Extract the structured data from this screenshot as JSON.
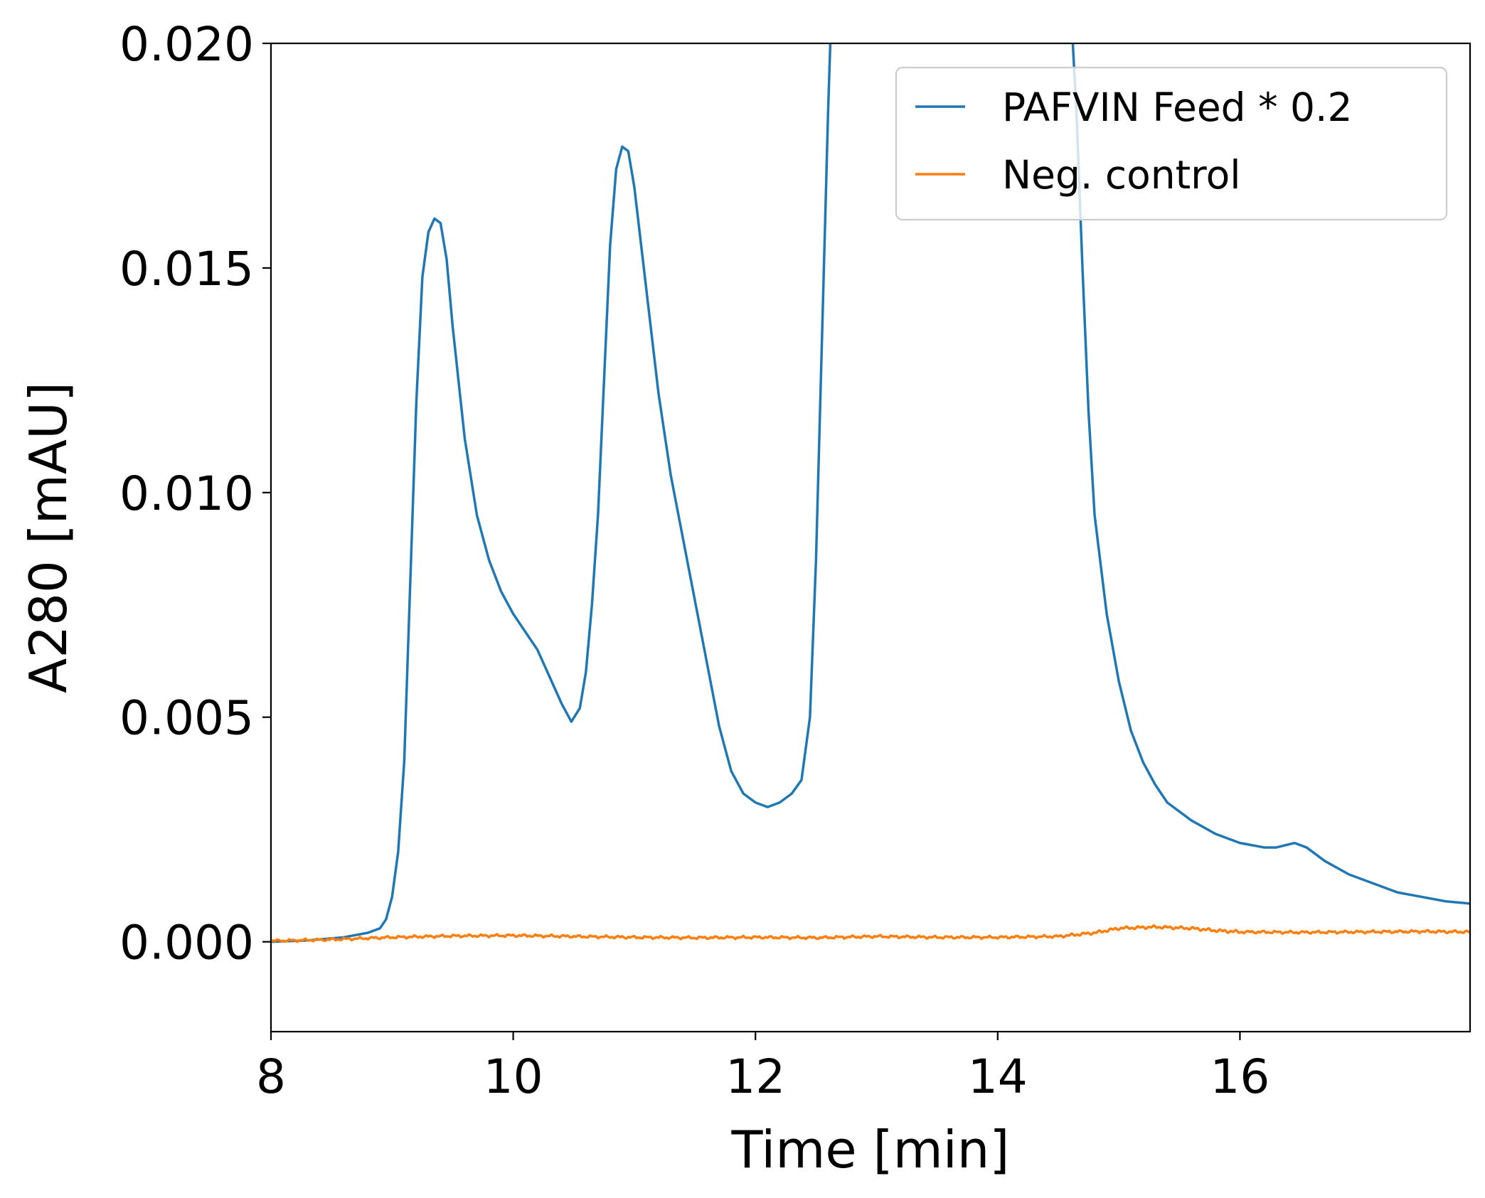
{
  "chart_data": {
    "type": "line",
    "title": "",
    "xlabel": "Time [min]",
    "ylabel": "A280 [mAU]",
    "xlim": [
      8,
      17.9
    ],
    "ylim": [
      -0.002,
      0.02
    ],
    "xticks": [
      8,
      10,
      12,
      14,
      16
    ],
    "xtick_labels": [
      "8",
      "10",
      "12",
      "14",
      "16"
    ],
    "yticks": [
      0.0,
      0.005,
      0.01,
      0.015,
      0.02
    ],
    "ytick_labels": [
      "0.000",
      "0.005",
      "0.010",
      "0.015",
      "0.020"
    ],
    "grid": false,
    "legend_position": "top-right",
    "series": [
      {
        "name": "PAFVIN Feed * 0.2",
        "color": "#1f77b4",
        "points": [
          [
            8.0,
            0.0
          ],
          [
            8.3,
            3e-05
          ],
          [
            8.6,
            0.0001
          ],
          [
            8.8,
            0.0002
          ],
          [
            8.9,
            0.0003
          ],
          [
            8.95,
            0.0005
          ],
          [
            9.0,
            0.001
          ],
          [
            9.05,
            0.002
          ],
          [
            9.1,
            0.004
          ],
          [
            9.15,
            0.008
          ],
          [
            9.2,
            0.012
          ],
          [
            9.25,
            0.0148
          ],
          [
            9.3,
            0.0158
          ],
          [
            9.35,
            0.0161
          ],
          [
            9.4,
            0.016
          ],
          [
            9.45,
            0.0152
          ],
          [
            9.5,
            0.0137
          ],
          [
            9.6,
            0.0112
          ],
          [
            9.7,
            0.0095
          ],
          [
            9.8,
            0.0085
          ],
          [
            9.9,
            0.0078
          ],
          [
            10.0,
            0.0073
          ],
          [
            10.1,
            0.0069
          ],
          [
            10.2,
            0.0065
          ],
          [
            10.3,
            0.0059
          ],
          [
            10.4,
            0.0053
          ],
          [
            10.48,
            0.0049
          ],
          [
            10.55,
            0.0052
          ],
          [
            10.6,
            0.006
          ],
          [
            10.65,
            0.0075
          ],
          [
            10.7,
            0.0095
          ],
          [
            10.75,
            0.0125
          ],
          [
            10.8,
            0.0155
          ],
          [
            10.85,
            0.0172
          ],
          [
            10.9,
            0.0177
          ],
          [
            10.95,
            0.0176
          ],
          [
            11.0,
            0.0168
          ],
          [
            11.1,
            0.0145
          ],
          [
            11.2,
            0.0122
          ],
          [
            11.3,
            0.0104
          ],
          [
            11.4,
            0.009
          ],
          [
            11.5,
            0.0076
          ],
          [
            11.6,
            0.0062
          ],
          [
            11.7,
            0.0048
          ],
          [
            11.8,
            0.0038
          ],
          [
            11.9,
            0.0033
          ],
          [
            12.0,
            0.0031
          ],
          [
            12.1,
            0.003
          ],
          [
            12.2,
            0.0031
          ],
          [
            12.3,
            0.0033
          ],
          [
            12.38,
            0.0036
          ],
          [
            12.45,
            0.005
          ],
          [
            12.5,
            0.0085
          ],
          [
            12.55,
            0.0135
          ],
          [
            12.6,
            0.0185
          ],
          [
            12.63,
            0.021
          ],
          [
            14.6,
            0.021
          ],
          [
            14.65,
            0.0185
          ],
          [
            14.7,
            0.015
          ],
          [
            14.75,
            0.0118
          ],
          [
            14.8,
            0.0095
          ],
          [
            14.9,
            0.0073
          ],
          [
            15.0,
            0.0058
          ],
          [
            15.1,
            0.0047
          ],
          [
            15.2,
            0.004
          ],
          [
            15.3,
            0.0035
          ],
          [
            15.4,
            0.0031
          ],
          [
            15.6,
            0.0027
          ],
          [
            15.8,
            0.0024
          ],
          [
            16.0,
            0.0022
          ],
          [
            16.2,
            0.0021
          ],
          [
            16.3,
            0.0021
          ],
          [
            16.45,
            0.0022
          ],
          [
            16.55,
            0.0021
          ],
          [
            16.7,
            0.0018
          ],
          [
            16.9,
            0.0015
          ],
          [
            17.1,
            0.0013
          ],
          [
            17.3,
            0.0011
          ],
          [
            17.5,
            0.001
          ],
          [
            17.7,
            0.0009
          ],
          [
            17.9,
            0.00085
          ]
        ]
      },
      {
        "name": "Neg. control",
        "color": "#ff7f0e",
        "points": [
          [
            8.0,
            2e-05
          ],
          [
            8.5,
            5e-05
          ],
          [
            9.0,
            0.0001
          ],
          [
            9.5,
            0.00013
          ],
          [
            10.0,
            0.00014
          ],
          [
            10.5,
            0.00012
          ],
          [
            11.0,
            0.0001
          ],
          [
            11.5,
            9e-05
          ],
          [
            12.0,
            0.0001
          ],
          [
            12.5,
            9e-05
          ],
          [
            13.0,
            0.00012
          ],
          [
            13.5,
            0.0001
          ],
          [
            14.0,
            0.0001
          ],
          [
            14.5,
            0.00012
          ],
          [
            14.8,
            0.0002
          ],
          [
            15.0,
            0.0003
          ],
          [
            15.3,
            0.00033
          ],
          [
            15.6,
            0.0003
          ],
          [
            15.8,
            0.00025
          ],
          [
            16.0,
            0.00022
          ],
          [
            16.5,
            0.00021
          ],
          [
            17.0,
            0.00022
          ],
          [
            17.5,
            0.00023
          ],
          [
            17.9,
            0.00022
          ]
        ]
      }
    ]
  }
}
